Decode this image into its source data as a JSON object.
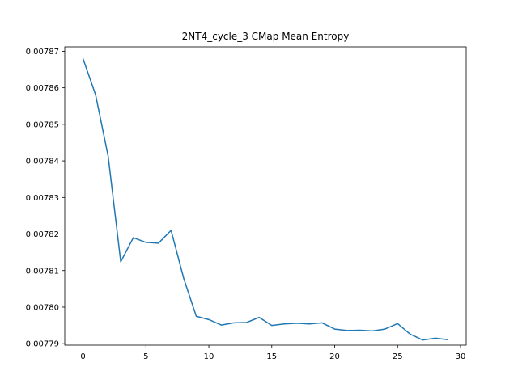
{
  "chart_data": {
    "type": "line",
    "title": "2NT4_cycle_3 CMap Mean Entropy",
    "xlabel": "",
    "ylabel": "",
    "xlim": [
      -1.45,
      30.45
    ],
    "ylim": [
      0.0077896,
      0.0078712
    ],
    "xticks": [
      0,
      5,
      10,
      15,
      20,
      25,
      30
    ],
    "xtick_labels": [
      "0",
      "5",
      "10",
      "15",
      "20",
      "25",
      "30"
    ],
    "yticks": [
      0.00779,
      0.0078,
      0.00781,
      0.00782,
      0.00783,
      0.00784,
      0.00785,
      0.00786,
      0.00787
    ],
    "ytick_labels": [
      "0.00779",
      "0.00780",
      "0.00781",
      "0.00782",
      "0.00783",
      "0.00784",
      "0.00785",
      "0.00786",
      "0.00787"
    ],
    "grid": false,
    "series": [
      {
        "color": "#1f77b4",
        "x": [
          0,
          1,
          2,
          3,
          4,
          5,
          6,
          7,
          8,
          9,
          10,
          11,
          12,
          13,
          14,
          15,
          16,
          17,
          18,
          19,
          20,
          21,
          22,
          23,
          24,
          25,
          26,
          27,
          28,
          29
        ],
        "y": [
          0.007868,
          0.0078581,
          0.0078413,
          0.0078124,
          0.007819,
          0.0078177,
          0.0078175,
          0.007821,
          0.0078079,
          0.0077975,
          0.0077966,
          0.0077951,
          0.0077957,
          0.0077958,
          0.0077972,
          0.007795,
          0.0077954,
          0.0077956,
          0.0077954,
          0.0077957,
          0.007794,
          0.0077936,
          0.0077937,
          0.0077935,
          0.007794,
          0.0077955,
          0.0077926,
          0.007791,
          0.0077915,
          0.0077911
        ]
      }
    ]
  }
}
